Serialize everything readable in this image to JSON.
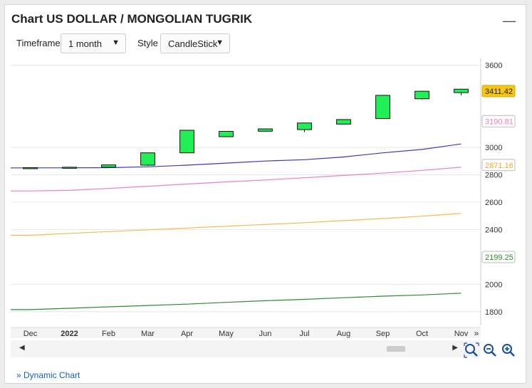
{
  "title": "Chart US DOLLAR / MONGOLIAN TUGRIK",
  "collapse_symbol": "—",
  "controls": {
    "timeframe_label": "Timeframe",
    "timeframe_value": "1 month",
    "style_label": "Style",
    "style_value": "CandleStick"
  },
  "chart_data": {
    "type": "candlestick",
    "categories": [
      "Dec",
      "Jan",
      "Feb",
      "Mar",
      "Apr",
      "May",
      "Jun",
      "Jul",
      "Aug",
      "Sep",
      "Oct",
      "Nov"
    ],
    "x_tick_labels": [
      "Dec",
      "2022",
      "Feb",
      "Mar",
      "Apr",
      "May",
      "Jun",
      "Jul",
      "Aug",
      "Sep",
      "Oct",
      "Nov"
    ],
    "candles": [
      {
        "open": 2848,
        "close": 2852,
        "high": 2852,
        "low": 2846
      },
      {
        "open": 2852,
        "close": 2855,
        "high": 2857,
        "low": 2850
      },
      {
        "open": 2855,
        "close": 2872,
        "high": 2874,
        "low": 2853
      },
      {
        "open": 2870,
        "close": 2960,
        "high": 2962,
        "low": 2865
      },
      {
        "open": 2960,
        "close": 3125,
        "high": 3128,
        "low": 2958
      },
      {
        "open": 3078,
        "close": 3117,
        "high": 3119,
        "low": 3076
      },
      {
        "open": 3118,
        "close": 3135,
        "high": 3136,
        "low": 3116
      },
      {
        "open": 3130,
        "close": 3178,
        "high": 3180,
        "low": 3112
      },
      {
        "open": 3170,
        "close": 3203,
        "high": 3205,
        "low": 3168
      },
      {
        "open": 3210,
        "close": 3380,
        "high": 3383,
        "low": 3208
      },
      {
        "open": 3355,
        "close": 3410,
        "high": 3413,
        "low": 3350
      },
      {
        "open": 3400,
        "close": 3425,
        "high": 3428,
        "low": 3380
      }
    ],
    "moving_averages": [
      {
        "color": "#3a3ab8",
        "values": [
          2850,
          2851,
          2852,
          2858,
          2870,
          2885,
          2900,
          2910,
          2930,
          2960,
          2985,
          3025
        ]
      },
      {
        "color": "#e87fbf",
        "values": [
          2682,
          2686,
          2700,
          2716,
          2732,
          2748,
          2762,
          2778,
          2795,
          2812,
          2832,
          2855
        ]
      },
      {
        "color": "#f3b94a",
        "values": [
          2358,
          2372,
          2385,
          2398,
          2411,
          2424,
          2437,
          2450,
          2465,
          2480,
          2497,
          2518
        ]
      },
      {
        "color": "#2f8a2f",
        "values": [
          1815,
          1825,
          1835,
          1845,
          1855,
          1868,
          1880,
          1890,
          1902,
          1913,
          1922,
          1935
        ]
      }
    ],
    "y_ticks": [
      1800,
      2000,
      2400,
      2600,
      2800,
      3000,
      3600
    ],
    "ylim": [
      1700,
      3650
    ],
    "price_labels": [
      {
        "value": 3411.42,
        "text": "3411.42",
        "bg": "#f5c518",
        "fg": "#222",
        "border": "#d9a900"
      },
      {
        "value": 3190.81,
        "text": "3190.81",
        "bg": "#ffffff",
        "fg": "#e87fbf",
        "border": "#bbbbbb"
      },
      {
        "value": 2871.16,
        "text": "2871.16",
        "bg": "#ffffff",
        "fg": "#f0a830",
        "border": "#bbbbbb"
      },
      {
        "value": 2199.25,
        "text": "2199.25",
        "bg": "#ffffff",
        "fg": "#2f8a2f",
        "border": "#bbbbbb"
      }
    ],
    "candle_color": "#22ee55",
    "grid": true,
    "more_symbol": "»"
  },
  "footer_link": "» Dynamic Chart"
}
